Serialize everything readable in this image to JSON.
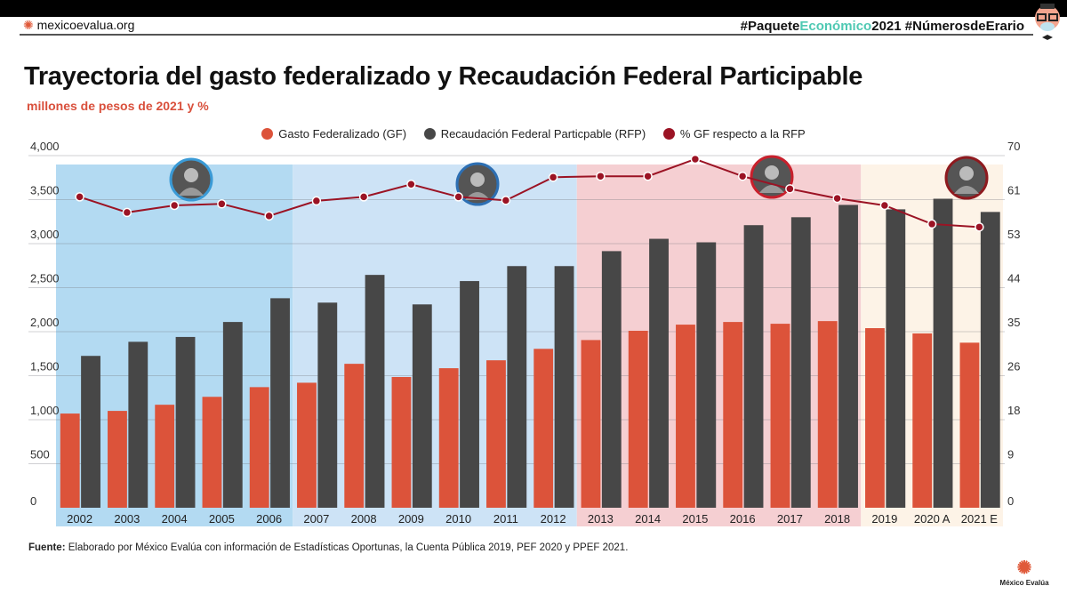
{
  "header": {
    "site": "mexicoevalua.org",
    "hashtag_part1": "#Paquete",
    "hashtag_part2": "Económico",
    "hashtag_part3": "2021 #NúmerosdeErario"
  },
  "footer": {
    "source_label": "Fuente:",
    "source_text": " Elaborado por México Evalúa con información de Estadísticas Oportunas, la Cuenta Pública 2019, PEF 2020 y PPEF 2021.",
    "logo_text": "México Evalúa"
  },
  "chart_data": {
    "type": "bar",
    "title": "Trayectoria del gasto federalizado y Recaudación Federal Participable",
    "subtitle": "millones de pesos de 2021 y %",
    "categories": [
      "2002",
      "2003",
      "2004",
      "2005",
      "2006",
      "2007",
      "2008",
      "2009",
      "2010",
      "2011",
      "2012",
      "2013",
      "2014",
      "2015",
      "2016",
      "2017",
      "2018",
      "2019",
      "2020 A",
      "2021 E"
    ],
    "series": [
      {
        "name": "Gasto Federalizado (GF)",
        "type": "bar",
        "axis": "left",
        "color": "#dc533a",
        "values": [
          1070,
          1100,
          1170,
          1260,
          1370,
          1420,
          1635,
          1485,
          1585,
          1675,
          1805,
          1905,
          2010,
          2080,
          2110,
          2090,
          2120,
          2040,
          1980,
          1875
        ]
      },
      {
        "name": "Recaudación Federal Particpable (RFP)",
        "type": "bar",
        "axis": "left",
        "color": "#474747",
        "values": [
          1725,
          1885,
          1940,
          2110,
          2380,
          2330,
          2645,
          2310,
          2575,
          2745,
          2745,
          2915,
          3055,
          3015,
          3210,
          3300,
          3440,
          3390,
          3510,
          3360
        ]
      },
      {
        "name": "%  GF respecto a la RFP",
        "type": "line",
        "axis": "right",
        "color": "#9b1324",
        "values": [
          61.8,
          58.7,
          60.1,
          60.4,
          58.0,
          61.0,
          61.8,
          64.3,
          61.8,
          61.1,
          65.7,
          65.9,
          65.9,
          69.3,
          65.9,
          63.4,
          61.5,
          60.1,
          56.4,
          55.8
        ]
      }
    ],
    "y_left": {
      "ticks": [
        "0",
        "500",
        "1,000",
        "1,500",
        "2,000",
        "2,500",
        "3,000",
        "3,500",
        "4,000"
      ],
      "range": [
        0,
        4000
      ]
    },
    "y_right": {
      "ticks": [
        "0",
        "9",
        "18",
        "26",
        "35",
        "44",
        "53",
        "61",
        "70"
      ],
      "range": [
        0,
        70
      ]
    },
    "grid": true,
    "legend_position": "top",
    "periods": [
      {
        "from": 0,
        "to": 4,
        "color": "#b3daf2",
        "portrait_border": "#3a9ad6"
      },
      {
        "from": 5,
        "to": 10,
        "color": "#cde3f6",
        "portrait_border": "#2d6fb3"
      },
      {
        "from": 11,
        "to": 16,
        "color": "#f5cfd2",
        "portrait_border": "#c8202c"
      },
      {
        "from": 17,
        "to": 19,
        "color": "#fdf3e7",
        "portrait_border": "#8e1a1f"
      }
    ]
  }
}
